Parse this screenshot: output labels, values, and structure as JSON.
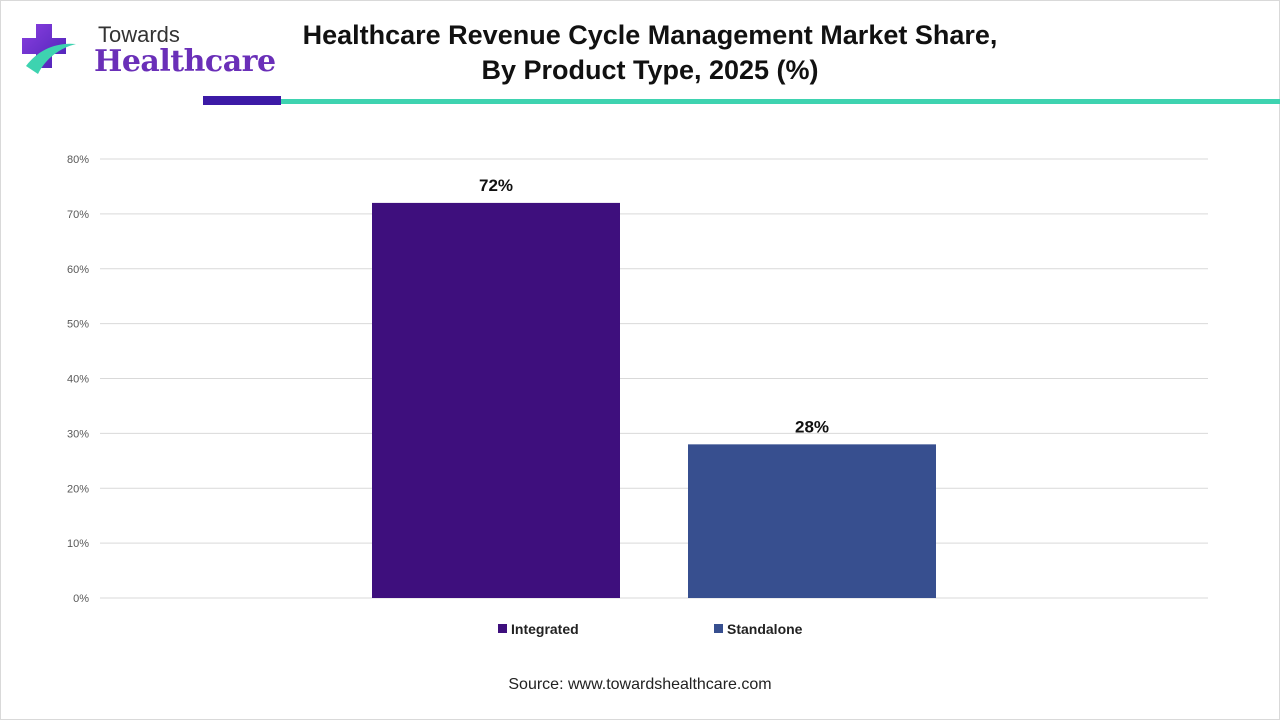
{
  "logo": {
    "line1": "Towards",
    "line2": "Healthcare"
  },
  "title_line1": "Healthcare Revenue Cycle Management Market Share,",
  "title_line2": "By Product Type, 2025 (%)",
  "source": "Source: www.towardshealthcare.com",
  "colors": {
    "integrated": "#3e0f7d",
    "standalone": "#374f8f",
    "grid": "#d9d9d9",
    "accent_dark": "#3c1aa6",
    "accent_teal": "#3ed3b0"
  },
  "chart_data": {
    "type": "bar",
    "categories": [
      "Integrated",
      "Standalone"
    ],
    "values": [
      72,
      28
    ],
    "data_labels": [
      "72%",
      "28%"
    ],
    "ylim": [
      0,
      80
    ],
    "yticks": [
      0,
      10,
      20,
      30,
      40,
      50,
      60,
      70,
      80
    ],
    "ytick_labels": [
      "0%",
      "10%",
      "20%",
      "30%",
      "40%",
      "50%",
      "60%",
      "70%",
      "80%"
    ],
    "grid": true,
    "legend": {
      "position": "bottom",
      "entries": [
        "Integrated",
        "Standalone"
      ]
    }
  }
}
